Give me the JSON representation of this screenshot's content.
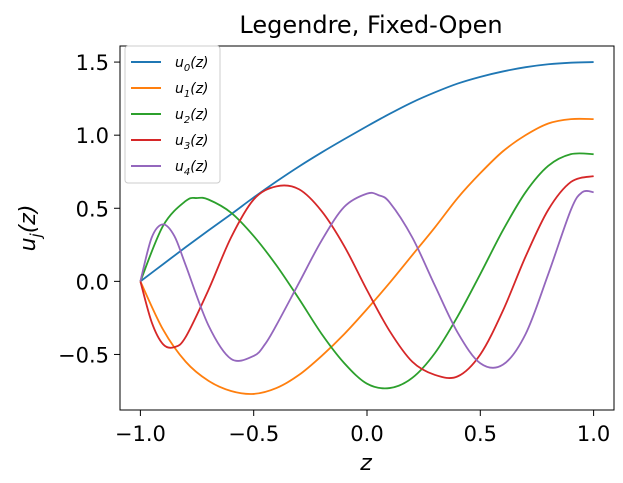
{
  "chart_data": {
    "type": "line",
    "title": "Legendre, Fixed-Open",
    "xlabel": "z",
    "ylabel": "u_j(z)",
    "xlim": [
      -1.09,
      1.09
    ],
    "ylim": [
      -0.88,
      1.61
    ],
    "xticks": [
      -1.0,
      -0.5,
      0.0,
      0.5,
      1.0
    ],
    "xtick_labels": [
      "−1.0",
      "−0.5",
      "0.0",
      "0.5",
      "1.0"
    ],
    "yticks": [
      -0.5,
      0.0,
      0.5,
      1.0,
      1.5
    ],
    "ytick_labels": [
      "−0.5",
      "0.0",
      "0.5",
      "1.0",
      "1.5"
    ],
    "grid": false,
    "legend_position": "top-left",
    "series": [
      {
        "name": "u0(z)",
        "color": "#1f77b4",
        "x": [
          -1.0,
          -0.9,
          -0.8,
          -0.7,
          -0.6,
          -0.5,
          -0.4,
          -0.3,
          -0.2,
          -0.1,
          0.0,
          0.1,
          0.2,
          0.3,
          0.4,
          0.5,
          0.6,
          0.7,
          0.8,
          0.9,
          1.0
        ],
        "y": [
          0.0,
          0.117,
          0.234,
          0.348,
          0.459,
          0.574,
          0.683,
          0.786,
          0.882,
          0.973,
          1.061,
          1.146,
          1.225,
          1.293,
          1.353,
          1.399,
          1.436,
          1.465,
          1.485,
          1.496,
          1.5
        ]
      },
      {
        "name": "u1(z)",
        "color": "#ff7f0e",
        "x": [
          -1.0,
          -0.9,
          -0.8,
          -0.7,
          -0.6,
          -0.5,
          -0.4,
          -0.3,
          -0.2,
          -0.1,
          0.0,
          0.1,
          0.2,
          0.3,
          0.4,
          0.5,
          0.6,
          0.7,
          0.8,
          0.9,
          1.0
        ],
        "y": [
          0.0,
          -0.33,
          -0.55,
          -0.68,
          -0.75,
          -0.77,
          -0.73,
          -0.64,
          -0.51,
          -0.36,
          -0.19,
          -0.01,
          0.18,
          0.37,
          0.57,
          0.74,
          0.89,
          1.0,
          1.08,
          1.11,
          1.11
        ]
      },
      {
        "name": "u2(z)",
        "color": "#2ca02c",
        "x": [
          -1.0,
          -0.9,
          -0.8,
          -0.75,
          -0.7,
          -0.6,
          -0.5,
          -0.4,
          -0.3,
          -0.2,
          -0.1,
          0.0,
          0.1,
          0.2,
          0.3,
          0.4,
          0.5,
          0.6,
          0.7,
          0.8,
          0.9,
          1.0
        ],
        "y": [
          0.0,
          0.38,
          0.55,
          0.57,
          0.56,
          0.47,
          0.31,
          0.11,
          -0.12,
          -0.36,
          -0.56,
          -0.7,
          -0.73,
          -0.66,
          -0.49,
          -0.24,
          0.05,
          0.35,
          0.61,
          0.79,
          0.87,
          0.87
        ]
      },
      {
        "name": "u3(z)",
        "color": "#d62728",
        "x": [
          -1.0,
          -0.95,
          -0.9,
          -0.85,
          -0.8,
          -0.7,
          -0.6,
          -0.5,
          -0.4,
          -0.3,
          -0.2,
          -0.1,
          0.0,
          0.1,
          0.2,
          0.3,
          0.4,
          0.5,
          0.6,
          0.7,
          0.8,
          0.9,
          1.0
        ],
        "y": [
          0.0,
          -0.28,
          -0.43,
          -0.45,
          -0.38,
          -0.06,
          0.3,
          0.56,
          0.65,
          0.63,
          0.48,
          0.24,
          -0.06,
          -0.34,
          -0.55,
          -0.64,
          -0.65,
          -0.5,
          -0.2,
          0.17,
          0.49,
          0.68,
          0.72
        ]
      },
      {
        "name": "u4(z)",
        "color": "#9467bd",
        "x": [
          -1.0,
          -0.95,
          -0.9,
          -0.85,
          -0.8,
          -0.7,
          -0.6,
          -0.5,
          -0.45,
          -0.4,
          -0.3,
          -0.2,
          -0.1,
          0.0,
          0.05,
          0.1,
          0.2,
          0.3,
          0.4,
          0.5,
          0.6,
          0.7,
          0.8,
          0.9,
          0.95,
          1.0
        ],
        "y": [
          0.0,
          0.3,
          0.39,
          0.31,
          0.11,
          -0.3,
          -0.53,
          -0.51,
          -0.43,
          -0.3,
          -0.01,
          0.28,
          0.51,
          0.6,
          0.59,
          0.54,
          0.3,
          -0.03,
          -0.35,
          -0.56,
          -0.57,
          -0.36,
          0.05,
          0.49,
          0.61,
          0.61
        ]
      }
    ]
  }
}
